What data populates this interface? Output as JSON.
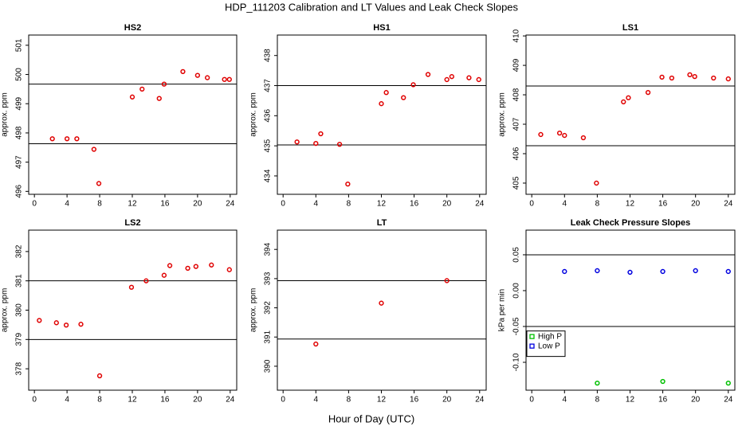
{
  "title": "HDP_111203  Calibration and LT Values and Leak Check Slopes",
  "xlabel": "Hour of Day (UTC)",
  "chart_data": [
    {
      "type": "scatter",
      "title": "HS2",
      "ylabel": "approx. ppm",
      "color": "#e00000",
      "x": [
        2.2,
        4.0,
        5.2,
        7.3,
        7.9,
        12.0,
        13.2,
        15.3,
        15.9,
        18.2,
        20.0,
        21.2,
        23.3,
        23.9
      ],
      "values": [
        497.8,
        497.8,
        497.8,
        497.44,
        496.27,
        499.23,
        499.5,
        499.18,
        499.67,
        500.1,
        499.97,
        499.89,
        499.83,
        499.83
      ],
      "hlines": [
        499.67,
        497.63
      ],
      "xlim": [
        -0.7,
        24.8
      ],
      "xticks": [
        0,
        4,
        8,
        12,
        16,
        20,
        24
      ],
      "ylim": [
        495.9,
        501.35
      ],
      "yticks": [
        496,
        497,
        498,
        499,
        500,
        501
      ]
    },
    {
      "type": "scatter",
      "title": "HS1",
      "ylabel": "approx. ppm",
      "color": "#e00000",
      "x": [
        1.7,
        4.0,
        4.6,
        6.9,
        7.9,
        12.0,
        12.6,
        14.7,
        15.9,
        17.7,
        20.0,
        20.6,
        22.7,
        23.9
      ],
      "values": [
        435.13,
        435.08,
        435.4,
        435.05,
        433.73,
        436.4,
        436.77,
        436.6,
        437.03,
        437.37,
        437.2,
        437.3,
        437.26,
        437.2
      ],
      "hlines": [
        437.0,
        435.03
      ],
      "xlim": [
        -0.7,
        24.8
      ],
      "xticks": [
        0,
        4,
        8,
        12,
        16,
        20,
        24
      ],
      "ylim": [
        433.39,
        438.68
      ],
      "yticks": [
        434,
        435,
        436,
        437,
        438
      ]
    },
    {
      "type": "scatter",
      "title": "LS1",
      "ylabel": "approx. ppm",
      "color": "#e00000",
      "x": [
        1.1,
        3.4,
        4.0,
        6.3,
        7.9,
        11.2,
        11.8,
        14.2,
        15.9,
        17.1,
        19.3,
        19.9,
        22.2,
        24.0
      ],
      "values": [
        406.65,
        406.7,
        406.62,
        406.54,
        405.0,
        407.76,
        407.9,
        408.08,
        408.6,
        408.57,
        408.68,
        408.62,
        408.57,
        408.54
      ],
      "hlines": [
        408.3,
        406.27
      ],
      "xlim": [
        -0.7,
        24.8
      ],
      "xticks": [
        0,
        4,
        8,
        12,
        16,
        20,
        24
      ],
      "ylim": [
        404.62,
        410.03
      ],
      "yticks": [
        405,
        406,
        407,
        408,
        409,
        410
      ]
    },
    {
      "type": "scatter",
      "title": "LS2",
      "ylabel": "approx. ppm",
      "color": "#e00000",
      "x": [
        0.6,
        2.7,
        3.9,
        5.7,
        8.0,
        11.9,
        13.7,
        15.9,
        16.6,
        18.8,
        19.8,
        21.7,
        23.9
      ],
      "values": [
        379.65,
        379.57,
        379.49,
        379.52,
        377.76,
        380.78,
        381.0,
        381.19,
        381.52,
        381.43,
        381.49,
        381.54,
        381.38
      ],
      "hlines": [
        381.0,
        379.0
      ],
      "xlim": [
        -0.7,
        24.8
      ],
      "xticks": [
        0,
        4,
        8,
        12,
        16,
        20,
        24
      ],
      "ylim": [
        377.27,
        382.73
      ],
      "yticks": [
        378,
        379,
        380,
        381,
        382
      ]
    },
    {
      "type": "scatter",
      "title": "LT",
      "ylabel": "approx. ppm",
      "color": "#e00000",
      "x": [
        4.0,
        12.0,
        20.0
      ],
      "values": [
        390.76,
        392.16,
        392.93
      ],
      "hlines": [
        392.93,
        390.93
      ],
      "xlim": [
        -0.7,
        24.8
      ],
      "xticks": [
        0,
        4,
        8,
        12,
        16,
        20,
        24
      ],
      "ylim": [
        389.18,
        394.66
      ],
      "yticks": [
        390,
        391,
        392,
        393,
        394
      ]
    },
    {
      "type": "scatter",
      "title": "Leak Check Pressure Slopes",
      "ylabel": "kPa per min",
      "legend": "lower left",
      "series": [
        {
          "name": "High P",
          "color": "#00c000",
          "x": [
            8,
            16,
            24
          ],
          "values": [
            -0.129,
            -0.1267,
            -0.129
          ]
        },
        {
          "name": "Low P",
          "color": "#0000e0",
          "x": [
            4,
            8,
            12,
            16,
            20,
            24
          ],
          "values": [
            0.0267,
            0.0278,
            0.0256,
            0.0267,
            0.0278,
            0.0267
          ]
        }
      ],
      "hlines": [
        0.05,
        -0.05
      ],
      "xlim": [
        -0.7,
        24.8
      ],
      "xticks": [
        0,
        4,
        8,
        12,
        16,
        20,
        24
      ],
      "ylim": [
        -0.1389,
        0.0844
      ],
      "yticks": [
        0.05,
        {
          "value": 0,
          "label": "0.00"
        },
        -0.05,
        {
          "value": -0.1,
          "label": "-0.10"
        }
      ]
    }
  ]
}
